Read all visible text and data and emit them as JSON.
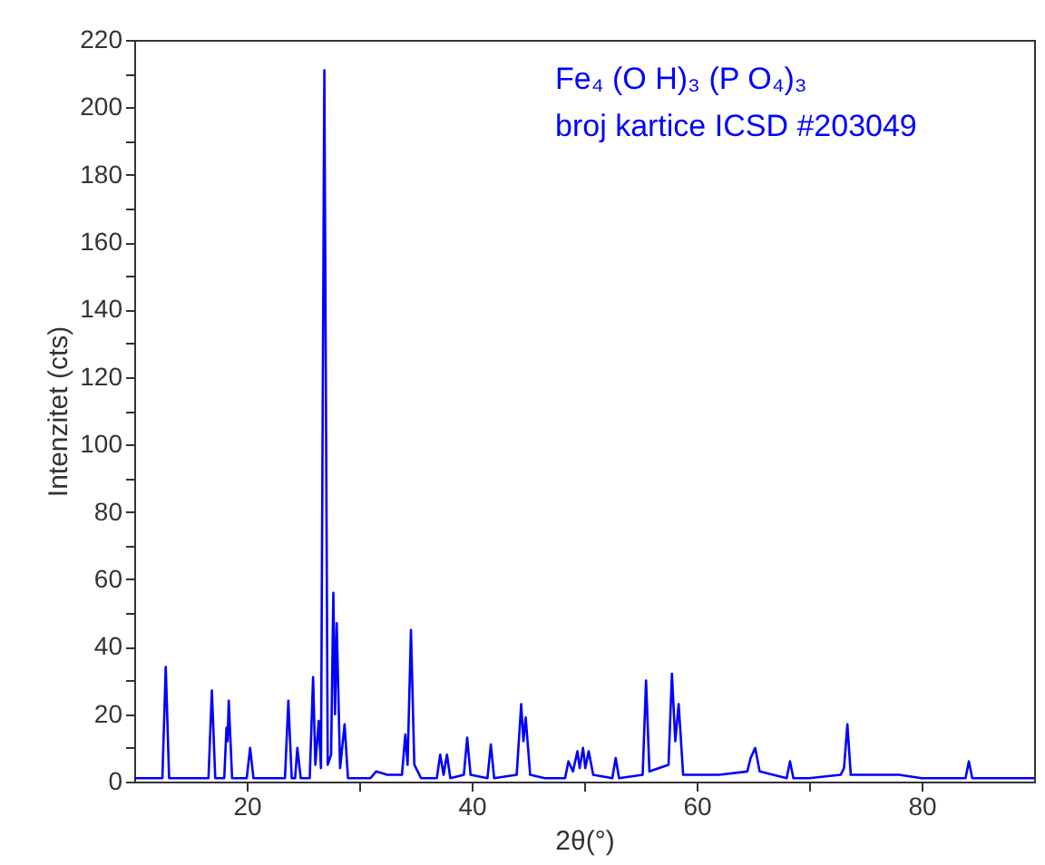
{
  "chart_data": {
    "type": "line",
    "xlabel": "2θ(°)",
    "ylabel": "Intenzitet (cts)",
    "annotations": [
      "Fe₄ (O H)₃ (P O₄)₃",
      "broj kartice ICSD #203049"
    ],
    "x": [
      10,
      12.5,
      12.8,
      13.1,
      16.6,
      16.9,
      17.2,
      18.0,
      18.2,
      18.3,
      18.4,
      18.7,
      20.0,
      20.3,
      20.6,
      23.4,
      23.7,
      24.0,
      24.3,
      24.5,
      24.8,
      25.6,
      25.9,
      26.1,
      26.4,
      26.6,
      26.9,
      27.2,
      27.5,
      27.7,
      27.85,
      28.0,
      28.3,
      28.7,
      29.0,
      31.0,
      31.5,
      32.5,
      33.8,
      34.1,
      34.3,
      34.6,
      34.9,
      35.5,
      36.9,
      37.2,
      37.5,
      37.8,
      38.1,
      39.3,
      39.6,
      39.9,
      41.4,
      41.7,
      42.0,
      44.0,
      44.4,
      44.6,
      44.8,
      45.2,
      46.5,
      48.3,
      48.6,
      49.0,
      49.4,
      49.6,
      49.9,
      50.1,
      50.4,
      50.8,
      52.5,
      52.8,
      53.1,
      55.2,
      55.5,
      55.8,
      57.5,
      57.8,
      58.1,
      58.4,
      58.8,
      60.5,
      62.0,
      64.5,
      64.8,
      65.2,
      65.6,
      68.0,
      68.3,
      68.6,
      70.0,
      72.8,
      73.1,
      73.4,
      73.7,
      75.0,
      78.0,
      80.0,
      83.9,
      84.2,
      84.5,
      86.5,
      90
    ],
    "series": [
      {
        "color": "#0000ff",
        "values": [
          1,
          1,
          34,
          1,
          1,
          27,
          1,
          1,
          16,
          12,
          24,
          1,
          1,
          10,
          1,
          1,
          24,
          1,
          1,
          10,
          1,
          1,
          31,
          5,
          18,
          4,
          211,
          5,
          8,
          56,
          20,
          47,
          4,
          17,
          1,
          1,
          3,
          2,
          2,
          14,
          5,
          45,
          5,
          1,
          1,
          8,
          2,
          8,
          1,
          2,
          13,
          2,
          1,
          11,
          1,
          2,
          23,
          12,
          19,
          2,
          1,
          1,
          6,
          3,
          9,
          4,
          10,
          4,
          9,
          2,
          1,
          7,
          1,
          2,
          30,
          3,
          5,
          32,
          12,
          23,
          2,
          2,
          2,
          3,
          7,
          10,
          3,
          1,
          6,
          1,
          1,
          2,
          4,
          17,
          2,
          2,
          2,
          1,
          1,
          6,
          1,
          1,
          1
        ]
      }
    ],
    "xlim": [
      10,
      90
    ],
    "xticks": [
      20,
      {
        "value": 30,
        "label": null
      },
      40,
      {
        "value": 50,
        "label": null
      },
      60,
      {
        "value": 70,
        "label": null
      },
      80
    ],
    "ylim": [
      0,
      220
    ],
    "yticks": [
      0,
      {
        "value": 10,
        "label": null
      },
      20,
      {
        "value": 30,
        "label": null
      },
      40,
      {
        "value": 50,
        "label": null
      },
      60,
      {
        "value": 70,
        "label": null
      },
      80,
      {
        "value": 90,
        "label": null
      },
      100,
      {
        "value": 110,
        "label": null
      },
      120,
      {
        "value": 130,
        "label": null
      },
      140,
      {
        "value": 150,
        "label": null
      },
      160,
      {
        "value": 170,
        "label": null
      },
      180,
      {
        "value": 190,
        "label": null
      },
      200,
      {
        "value": 210,
        "label": null
      },
      220
    ],
    "grid": false,
    "marker": "none",
    "line_style": "solid"
  }
}
